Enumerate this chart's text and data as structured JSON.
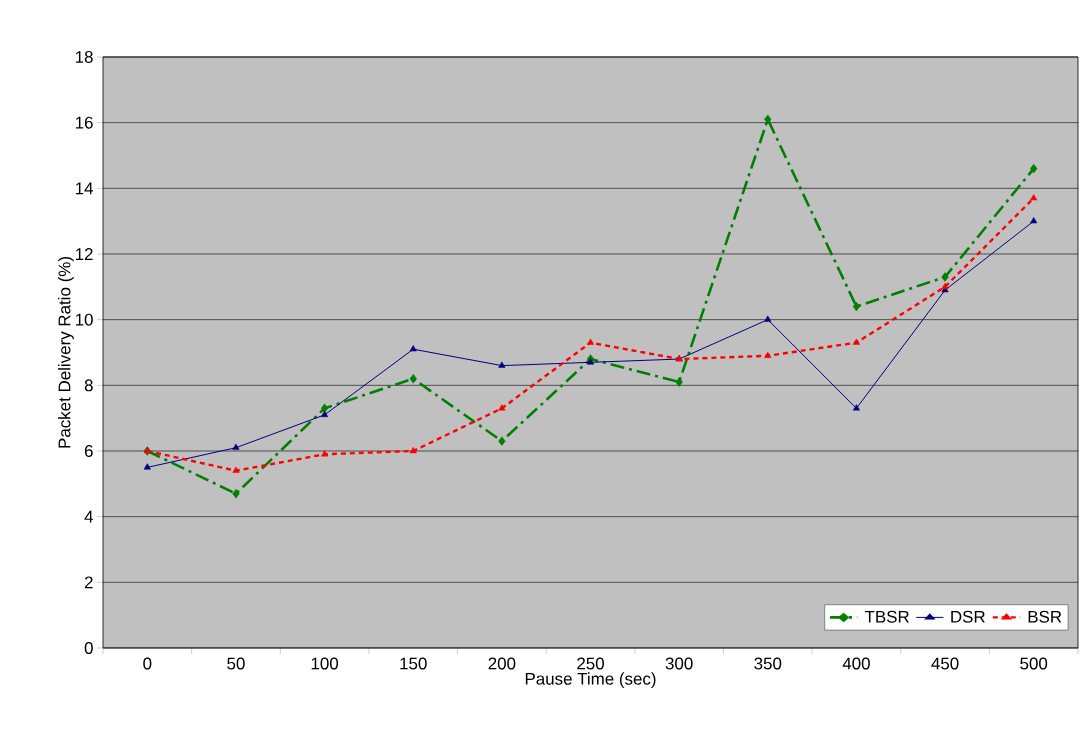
{
  "chart_data": {
    "type": "line",
    "xlabel": "Pause Time (sec)",
    "ylabel": "Packet Delivery Ratio (%)",
    "categories": [
      "0",
      "50",
      "100",
      "150",
      "200",
      "250",
      "300",
      "350",
      "400",
      "450",
      "500"
    ],
    "series": [
      {
        "name": "TBSR",
        "color": "#008000",
        "marker": "diamond",
        "line_style": "dashed",
        "values": [
          6.0,
          4.7,
          7.3,
          8.2,
          6.3,
          8.8,
          8.1,
          16.1,
          10.4,
          11.3,
          14.6
        ]
      },
      {
        "name": "DSR",
        "color": "#000080",
        "marker": "triangle",
        "line_style": "solid",
        "values": [
          5.5,
          6.1,
          7.1,
          9.1,
          8.6,
          8.7,
          8.8,
          10.0,
          7.3,
          10.9,
          13.0
        ]
      },
      {
        "name": "BSR",
        "color": "#ff0000",
        "marker": "triangle",
        "line_style": "dotted",
        "values": [
          6.0,
          5.4,
          5.9,
          6.0,
          7.3,
          9.3,
          8.8,
          8.9,
          9.3,
          11.0,
          13.7
        ]
      }
    ],
    "ylim": [
      0,
      18
    ],
    "yticks": [
      0,
      2,
      4,
      6,
      8,
      10,
      12,
      14,
      16,
      18
    ],
    "grid": "y",
    "legend": "bottom right"
  }
}
